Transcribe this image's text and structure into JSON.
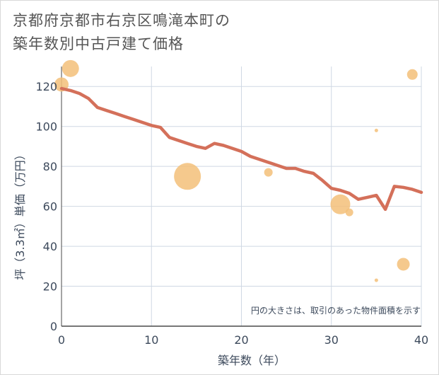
{
  "title_line1": "京都府京都市右京区鳴滝本町の",
  "title_line2": "築年数別中古戸建て価格",
  "chart_data": {
    "type": "line+scatter",
    "xlabel": "築年数（年）",
    "ylabel": "坪（3.3㎡）単価（万円）",
    "xlim": [
      0,
      40
    ],
    "ylim": [
      0,
      130
    ],
    "xticks": [
      0,
      10,
      20,
      30,
      40
    ],
    "yticks": [
      0,
      20,
      40,
      60,
      80,
      100,
      120
    ],
    "grid": true,
    "annotation": "円の大きさは、取引のあった物件面積を示す",
    "colors": {
      "line": "#d4705a",
      "bubble": "#f3c079",
      "grid": "#cfd8e3",
      "text": "#3d4a5c"
    },
    "line": {
      "x": [
        0,
        1,
        2,
        3,
        4,
        5,
        6,
        7,
        8,
        9,
        10,
        11,
        12,
        13,
        14,
        15,
        16,
        17,
        18,
        19,
        20,
        21,
        22,
        23,
        24,
        25,
        26,
        27,
        28,
        29,
        30,
        31,
        32,
        33,
        34,
        35,
        36,
        37,
        38,
        39,
        40
      ],
      "y": [
        119,
        118,
        116.5,
        114,
        109.5,
        108,
        106.5,
        105,
        103.5,
        102,
        100.5,
        99.5,
        94.5,
        93,
        91.5,
        90,
        89,
        91.5,
        90.5,
        89,
        87.5,
        85,
        83.5,
        82,
        80.5,
        79,
        79,
        77.5,
        76.5,
        73,
        69,
        68,
        66.5,
        63.5,
        64.5,
        65.5,
        58.5,
        70,
        69.5,
        68.5,
        67
      ]
    },
    "bubbles": [
      {
        "x": 0,
        "y": 121,
        "size": 10
      },
      {
        "x": 1,
        "y": 129,
        "size": 12
      },
      {
        "x": 14,
        "y": 75,
        "size": 19
      },
      {
        "x": 23,
        "y": 77,
        "size": 6
      },
      {
        "x": 31,
        "y": 61,
        "size": 14
      },
      {
        "x": 32,
        "y": 57,
        "size": 5.5
      },
      {
        "x": 35,
        "y": 98,
        "size": 2.5
      },
      {
        "x": 35,
        "y": 23,
        "size": 2.5
      },
      {
        "x": 38,
        "y": 31,
        "size": 9
      },
      {
        "x": 39,
        "y": 126,
        "size": 7.5
      }
    ]
  }
}
